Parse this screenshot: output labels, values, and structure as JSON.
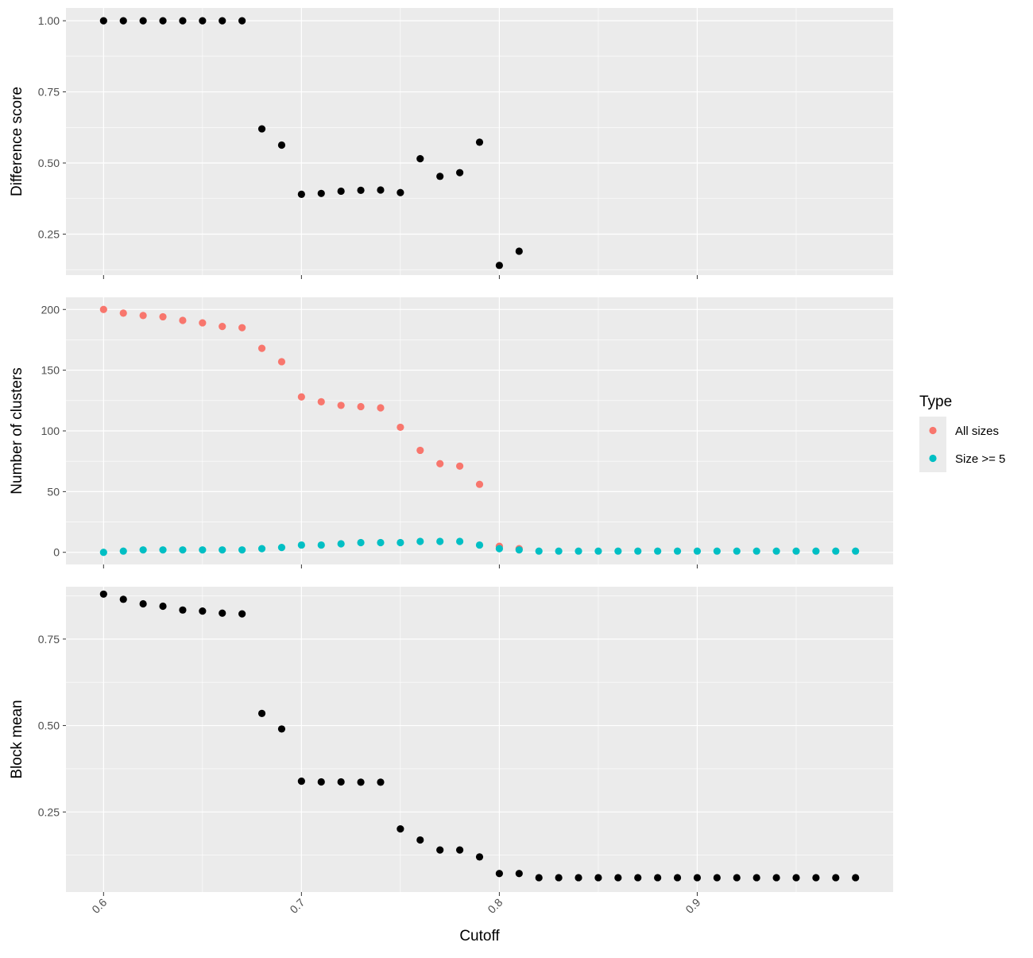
{
  "chart_data": {
    "type": "scatter",
    "layout": "three vertically stacked panels sharing the x axis",
    "x_axis": {
      "label": "Cutoff",
      "range": [
        0.581,
        0.999
      ],
      "ticks": [
        "0.6",
        "0.7",
        "0.8",
        "0.9"
      ],
      "tick_values": [
        0.6,
        0.7,
        0.8,
        0.9
      ],
      "tick_label_rotation": "45 degrees"
    },
    "legend": {
      "title": "Type",
      "placement": "right",
      "entries": [
        {
          "label": "All sizes",
          "color": "#F8766D"
        },
        {
          "label": "Size >= 5",
          "color": "#00BFC4"
        }
      ]
    },
    "colors": {
      "panel_background": "#EBEBEB",
      "grid": "#FFFFFF",
      "point_default": "#000000",
      "all_sizes": "#F8766D",
      "size_ge_5": "#00BFC4"
    },
    "grid": true,
    "panels": [
      {
        "ylabel": "Difference score",
        "ylim": [
          0.106,
          1.045
        ],
        "yticks": [
          "0.25",
          "0.50",
          "0.75",
          "1.00"
        ],
        "ytick_values": [
          0.25,
          0.5,
          0.75,
          1.0
        ],
        "series": [
          {
            "color": "#000000",
            "points": [
              [
                0.6,
                1.0
              ],
              [
                0.61,
                1.0
              ],
              [
                0.62,
                1.0
              ],
              [
                0.63,
                1.0
              ],
              [
                0.64,
                1.0
              ],
              [
                0.65,
                1.0
              ],
              [
                0.66,
                1.0
              ],
              [
                0.67,
                1.0
              ],
              [
                0.68,
                0.62
              ],
              [
                0.69,
                0.563
              ],
              [
                0.7,
                0.39
              ],
              [
                0.71,
                0.393
              ],
              [
                0.72,
                0.401
              ],
              [
                0.73,
                0.404
              ],
              [
                0.74,
                0.405
              ],
              [
                0.75,
                0.396
              ],
              [
                0.76,
                0.515
              ],
              [
                0.77,
                0.453
              ],
              [
                0.78,
                0.466
              ],
              [
                0.79,
                0.573
              ],
              [
                0.8,
                0.14
              ],
              [
                0.81,
                0.19
              ]
            ]
          }
        ]
      },
      {
        "ylabel": "Number of clusters",
        "ylim": [
          -10,
          210
        ],
        "yticks": [
          "0",
          "50",
          "100",
          "150",
          "200"
        ],
        "ytick_values": [
          0,
          50,
          100,
          150,
          200
        ],
        "series": [
          {
            "name": "All sizes",
            "color": "#F8766D",
            "points": [
              [
                0.6,
                200
              ],
              [
                0.61,
                197
              ],
              [
                0.62,
                195
              ],
              [
                0.63,
                194
              ],
              [
                0.64,
                191
              ],
              [
                0.65,
                189
              ],
              [
                0.66,
                186
              ],
              [
                0.67,
                185
              ],
              [
                0.68,
                168
              ],
              [
                0.69,
                157
              ],
              [
                0.7,
                128
              ],
              [
                0.71,
                124
              ],
              [
                0.72,
                121
              ],
              [
                0.73,
                120
              ],
              [
                0.74,
                119
              ],
              [
                0.75,
                103
              ],
              [
                0.76,
                84
              ],
              [
                0.77,
                73
              ],
              [
                0.78,
                71
              ],
              [
                0.79,
                56
              ],
              [
                0.8,
                5
              ],
              [
                0.81,
                3
              ]
            ]
          },
          {
            "name": "Size >= 5",
            "color": "#00BFC4",
            "points": [
              [
                0.6,
                0
              ],
              [
                0.61,
                1
              ],
              [
                0.62,
                2
              ],
              [
                0.63,
                2
              ],
              [
                0.64,
                2
              ],
              [
                0.65,
                2
              ],
              [
                0.66,
                2
              ],
              [
                0.67,
                2
              ],
              [
                0.68,
                3
              ],
              [
                0.69,
                4
              ],
              [
                0.7,
                6
              ],
              [
                0.71,
                6
              ],
              [
                0.72,
                7
              ],
              [
                0.73,
                8
              ],
              [
                0.74,
                8
              ],
              [
                0.75,
                8
              ],
              [
                0.76,
                9
              ],
              [
                0.77,
                9
              ],
              [
                0.78,
                9
              ],
              [
                0.79,
                6
              ],
              [
                0.8,
                3
              ],
              [
                0.81,
                2
              ],
              [
                0.82,
                1
              ],
              [
                0.83,
                1
              ],
              [
                0.84,
                1
              ],
              [
                0.85,
                1
              ],
              [
                0.86,
                1
              ],
              [
                0.87,
                1
              ],
              [
                0.88,
                1
              ],
              [
                0.89,
                1
              ],
              [
                0.9,
                1
              ],
              [
                0.91,
                1
              ],
              [
                0.92,
                1
              ],
              [
                0.93,
                1
              ],
              [
                0.94,
                1
              ],
              [
                0.95,
                1
              ],
              [
                0.96,
                1
              ],
              [
                0.97,
                1
              ],
              [
                0.98,
                1
              ]
            ]
          }
        ]
      },
      {
        "ylabel": "Block mean",
        "ylim": [
          0.0185,
          0.9014
        ],
        "yticks": [
          "0.25",
          "0.50",
          "0.75"
        ],
        "ytick_values": [
          0.25,
          0.5,
          0.75
        ],
        "series": [
          {
            "color": "#000000",
            "points": [
              [
                0.6,
                0.88
              ],
              [
                0.61,
                0.865
              ],
              [
                0.62,
                0.852
              ],
              [
                0.63,
                0.845
              ],
              [
                0.64,
                0.834
              ],
              [
                0.65,
                0.831
              ],
              [
                0.66,
                0.825
              ],
              [
                0.67,
                0.823
              ],
              [
                0.68,
                0.535
              ],
              [
                0.69,
                0.49
              ],
              [
                0.7,
                0.339
              ],
              [
                0.71,
                0.337
              ],
              [
                0.72,
                0.337
              ],
              [
                0.73,
                0.336
              ],
              [
                0.74,
                0.336
              ],
              [
                0.75,
                0.201
              ],
              [
                0.76,
                0.169
              ],
              [
                0.77,
                0.14
              ],
              [
                0.78,
                0.14
              ],
              [
                0.79,
                0.12
              ],
              [
                0.8,
                0.072
              ],
              [
                0.81,
                0.072
              ],
              [
                0.82,
                0.06
              ],
              [
                0.83,
                0.06
              ],
              [
                0.84,
                0.06
              ],
              [
                0.85,
                0.06
              ],
              [
                0.86,
                0.06
              ],
              [
                0.87,
                0.06
              ],
              [
                0.88,
                0.06
              ],
              [
                0.89,
                0.06
              ],
              [
                0.9,
                0.06
              ],
              [
                0.91,
                0.06
              ],
              [
                0.92,
                0.06
              ],
              [
                0.93,
                0.06
              ],
              [
                0.94,
                0.06
              ],
              [
                0.95,
                0.06
              ],
              [
                0.96,
                0.06
              ],
              [
                0.97,
                0.06
              ],
              [
                0.98,
                0.06
              ]
            ]
          }
        ]
      }
    ]
  }
}
